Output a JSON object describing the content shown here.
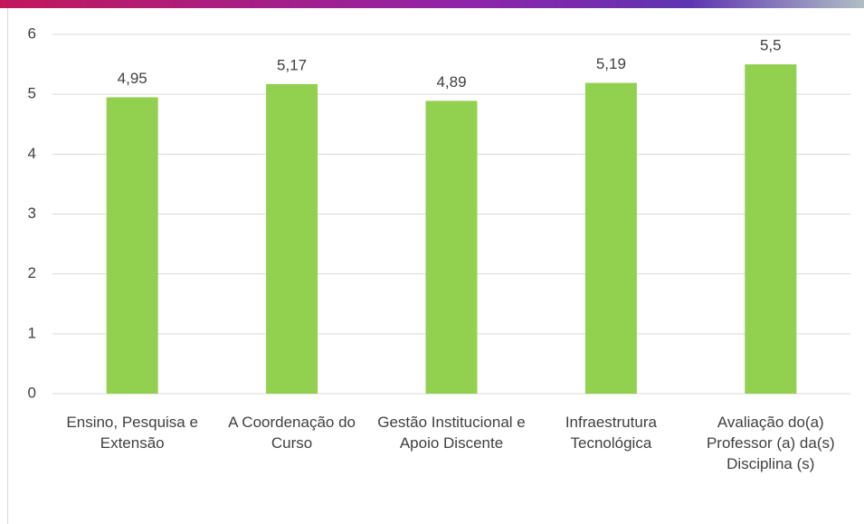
{
  "chart_data": {
    "type": "bar",
    "categories": [
      "Ensino, Pesquisa e Extensão",
      "A Coordenação do Curso",
      "Gestão Institucional e Apoio Discente",
      "Infraestrutura Tecnológica",
      "Avaliação do(a) Professor (a) da(s) Disciplina (s)"
    ],
    "values": [
      4.95,
      5.17,
      4.89,
      5.19,
      5.5
    ],
    "value_labels": [
      "4,95",
      "5,17",
      "4,89",
      "5,19",
      "5,5"
    ],
    "color": "#92d050",
    "ylim": [
      0,
      6
    ],
    "yticks": [
      0,
      1,
      2,
      3,
      4,
      5,
      6
    ],
    "grid": true
  }
}
